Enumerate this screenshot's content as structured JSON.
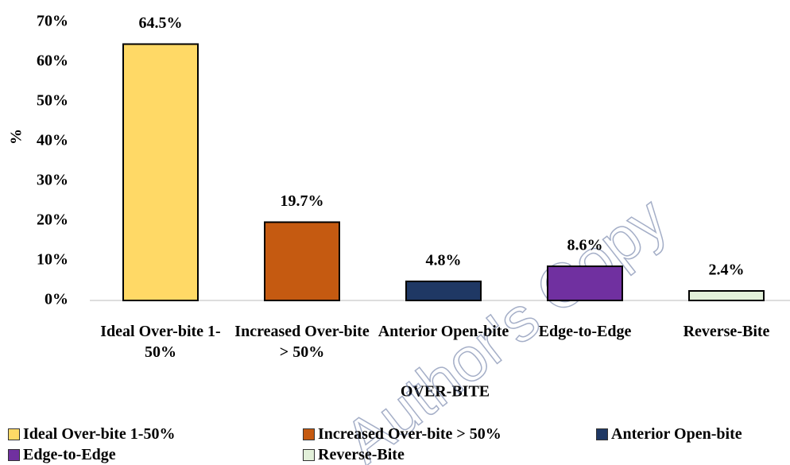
{
  "chart_data": {
    "type": "bar",
    "ylabel": "%",
    "xlabel": "OVER-BITE",
    "categories": [
      "Ideal Over-bite 1-50%",
      "Increased Over-bite > 50%",
      "Anterior Open-bite",
      "Edge-to-Edge",
      "Reverse-Bite"
    ],
    "values": [
      64.5,
      19.7,
      4.8,
      8.6,
      2.4
    ],
    "value_labels": [
      "64.5%",
      "19.7%",
      "4.8%",
      "8.6%",
      "2.4%"
    ],
    "colors": [
      "#FFD966",
      "#C55A11",
      "#1F3864",
      "#7030A0",
      "#E2F0D9"
    ],
    "ylim": [
      0,
      70
    ],
    "yticks": [
      {
        "value": 0,
        "label": "0%"
      },
      {
        "value": 10,
        "label": "10%"
      },
      {
        "value": 20,
        "label": "20%"
      },
      {
        "value": 30,
        "label": "30%"
      },
      {
        "value": 40,
        "label": "40%"
      },
      {
        "value": 50,
        "label": "50%"
      },
      {
        "value": 60,
        "label": "60%"
      },
      {
        "value": 70,
        "label": "70%"
      }
    ],
    "grid": false,
    "legend": "bottom",
    "watermark": "Author's Copy"
  }
}
